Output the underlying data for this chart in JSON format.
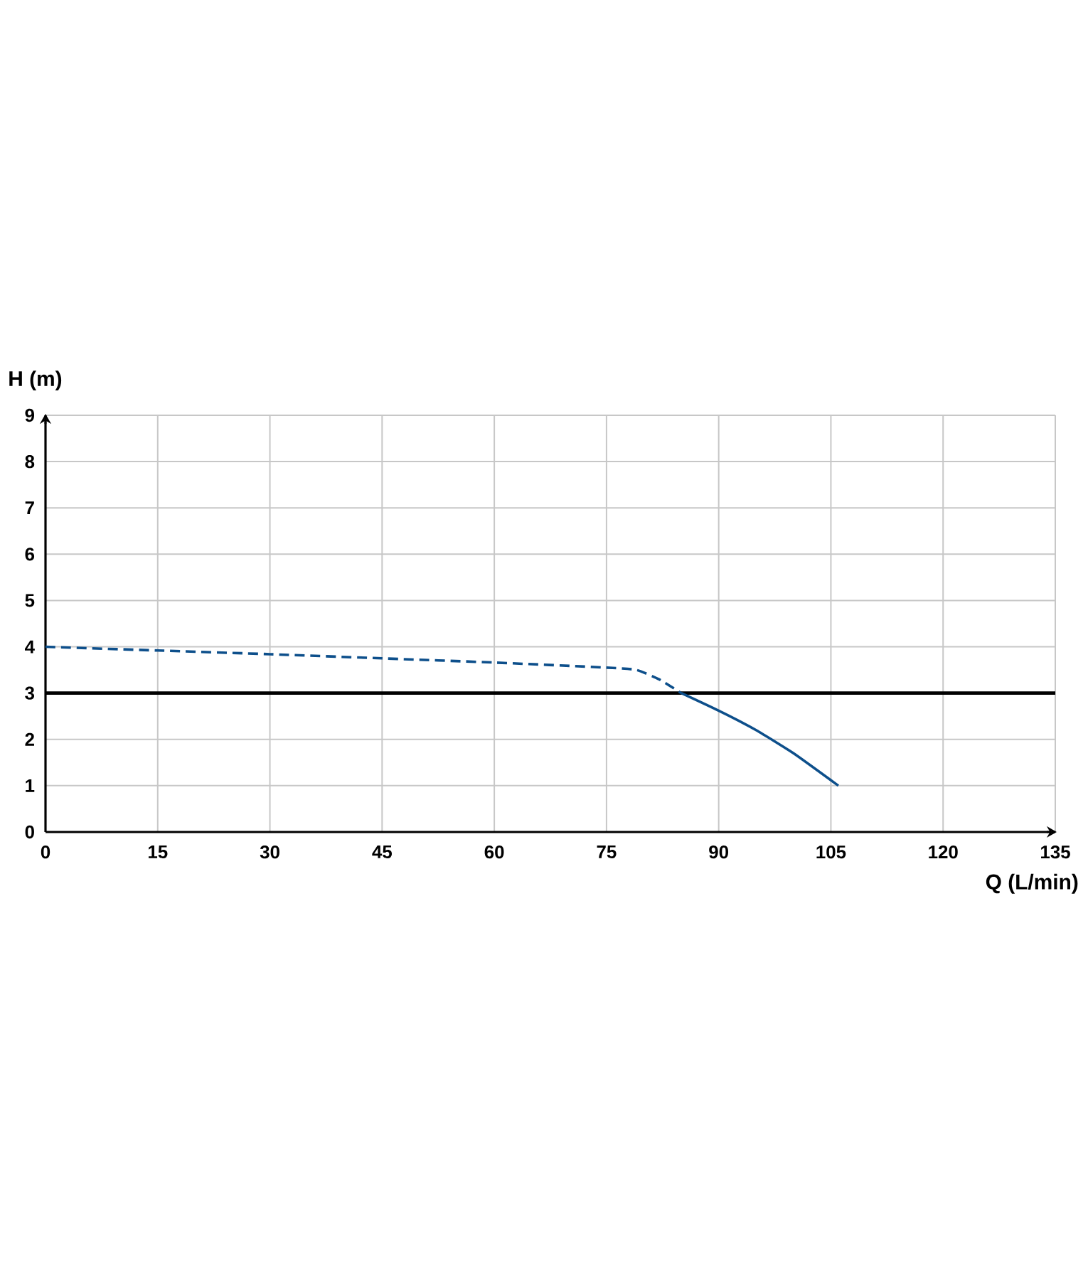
{
  "chart_data": {
    "type": "line",
    "xlabel": "Q (L/min)",
    "ylabel": "H (m)",
    "xlim": [
      0,
      135
    ],
    "ylim": [
      0,
      9
    ],
    "xticks": [
      0,
      15,
      30,
      45,
      60,
      75,
      90,
      105,
      120,
      135
    ],
    "yticks": [
      0,
      1,
      2,
      3,
      4,
      5,
      6,
      7,
      8,
      9
    ],
    "grid": true,
    "marker": "none",
    "series": [
      {
        "color": "#0d4f8b",
        "line_style": "dashed",
        "x": [
          0,
          15,
          30,
          45,
          60,
          75,
          79,
          82,
          85
        ],
        "values": [
          4.0,
          3.92,
          3.84,
          3.75,
          3.66,
          3.55,
          3.5,
          3.3,
          3.0
        ]
      },
      {
        "color": "#0d4f8b",
        "line_style": "solid",
        "x": [
          85,
          90,
          95,
          100,
          106
        ],
        "values": [
          3.0,
          2.62,
          2.2,
          1.7,
          1.0
        ]
      }
    ],
    "ref_lines": [
      {
        "axis": "y",
        "value": 3,
        "color": "#000000"
      }
    ]
  }
}
